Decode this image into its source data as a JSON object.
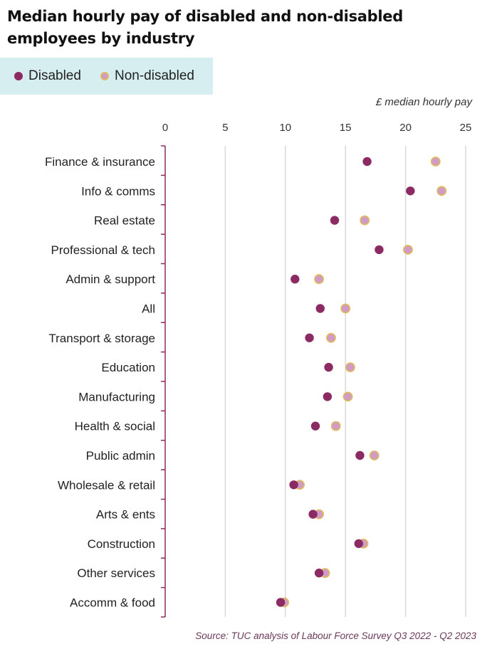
{
  "title": "Median hourly pay of disabled and non-disabled employees by industry",
  "legend": {
    "disabled": "Disabled",
    "nondisabled": "Non-disabled"
  },
  "unit_label": "£ median hourly pay",
  "source": "Source: TUC analysis of Labour Force Survey Q3 2022 - Q2 2023",
  "colors": {
    "disabled": "#8c2a63",
    "nondisabled_fill": "#d09bc6",
    "nondisabled_edge": "#e0b860",
    "axis": "#8c2a63",
    "grid": "#d9d9d9"
  },
  "chart_data": {
    "type": "scatter",
    "xlim": [
      0,
      25
    ],
    "xticks": [
      0,
      5,
      10,
      15,
      20,
      25
    ],
    "grid": "vertical",
    "legend_position": "top-left",
    "categories": [
      "Finance & insurance",
      "Info & comms",
      "Real estate",
      "Professional & tech",
      "Admin & support",
      "All",
      "Transport & storage",
      "Education",
      "Manufacturing",
      "Health & social",
      "Public admin",
      "Wholesale & retail",
      "Arts & ents",
      "Construction",
      "Other services",
      "Accomm & food"
    ],
    "series": [
      {
        "name": "Disabled",
        "values": [
          16.8,
          20.4,
          14.1,
          17.8,
          10.8,
          12.9,
          12.0,
          13.6,
          13.5,
          12.5,
          16.2,
          10.7,
          12.3,
          16.1,
          12.8,
          9.6
        ]
      },
      {
        "name": "Non-disabled",
        "values": [
          22.5,
          23.0,
          16.6,
          20.2,
          12.8,
          15.0,
          13.8,
          15.4,
          15.2,
          14.2,
          17.4,
          11.2,
          12.8,
          16.5,
          13.3,
          9.9
        ]
      }
    ]
  }
}
